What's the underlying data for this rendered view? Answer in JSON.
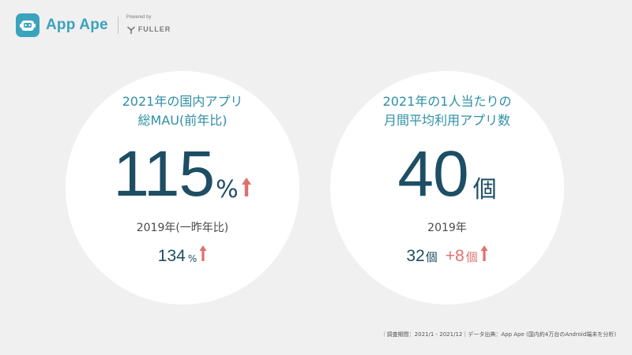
{
  "header": {
    "brand": "App Ape",
    "powered_by": "Powered by",
    "partner": "FULLER"
  },
  "left_stat": {
    "title_line1": "2021年の国内アプリ",
    "title_line2": "総MAU(前年比)",
    "value": "115",
    "unit": "%",
    "compare_label": "2019年(一昨年比)",
    "compare_value": "134",
    "compare_unit": "%"
  },
  "right_stat": {
    "title_line1": "2021年の1人当たりの",
    "title_line2": "月間平均利用アプリ数",
    "value": "40",
    "unit": "個",
    "compare_label": "2019年",
    "compare_value": "32",
    "compare_unit": "個",
    "delta_value": "+8",
    "delta_unit": "個"
  },
  "footer": {
    "note": "｜調査期間：2021/1 - 2021/12｜データ出典：App Ape (国内約4万台のAndroid端末を分析)"
  },
  "colors": {
    "background": "#f0f0f0",
    "brand": "#3aa3bd",
    "title": "#2e8fa6",
    "value": "#1d4e63",
    "increase": "#e0706e"
  },
  "icons": [
    "app-ape-logo-icon",
    "fuller-logo-icon",
    "up-arrow-icon"
  ]
}
